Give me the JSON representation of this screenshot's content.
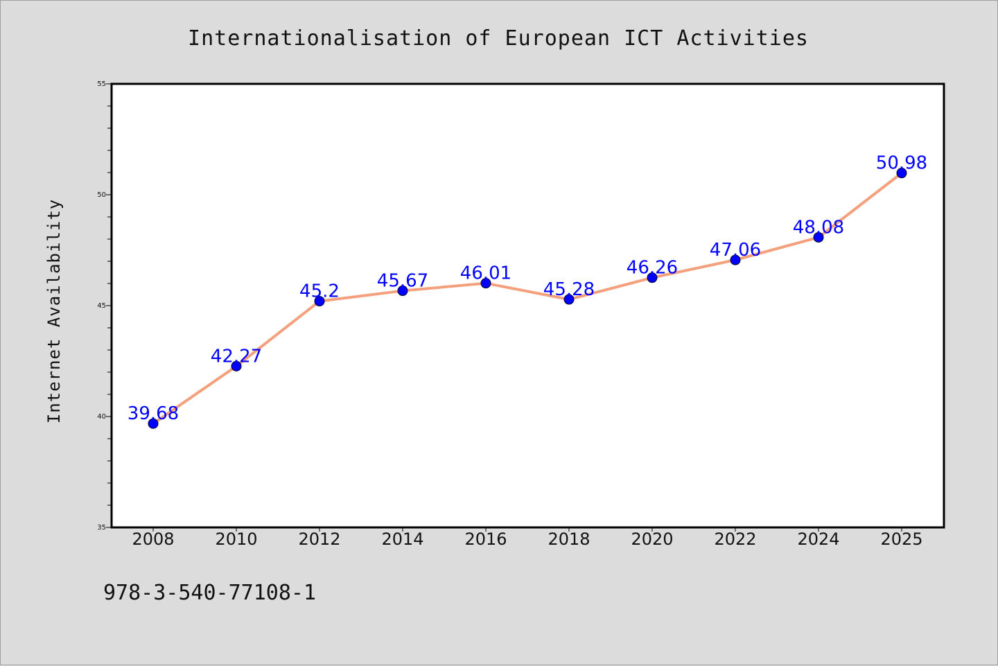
{
  "chart_data": {
    "type": "line",
    "title": "Internationalisation of European ICT Activities",
    "xlabel": "",
    "ylabel": "Internet Availability",
    "categories": [
      "2008",
      "2010",
      "2012",
      "2014",
      "2016",
      "2018",
      "2020",
      "2022",
      "2024",
      "2025"
    ],
    "series": [
      {
        "values": [
          39.68,
          42.27,
          45.2,
          45.67,
          46.01,
          45.28,
          46.26,
          47.06,
          48.08,
          50.98
        ],
        "data_labels": [
          "39.68",
          "42.27",
          "45.2",
          "45.67",
          "46.01",
          "45.28",
          "46.26",
          "47.06",
          "48.08",
          "50.98"
        ],
        "line_color": "#f4a07c",
        "marker_color": "#0000ff"
      }
    ],
    "ylim": [
      35,
      55
    ],
    "yticks": [
      "35",
      "40",
      "45",
      "50",
      "55"
    ],
    "grid": false,
    "legend": "none"
  },
  "footnote": "978-3-540-77108-1"
}
